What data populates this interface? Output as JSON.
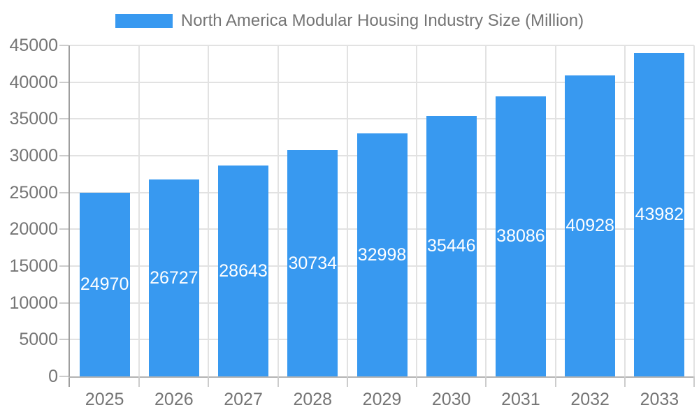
{
  "legend": {
    "label": "North America Modular Housing Industry Size (Million)"
  },
  "colors": {
    "bar": "#3899f0",
    "grid": "#e2e2e2",
    "axis_line": "#9e9e9e",
    "baseline": "#b3b3b3",
    "tick": "#cccccc",
    "axis_text": "#757575",
    "value_text": "#ffffff",
    "background": "#ffffff"
  },
  "chart_data": {
    "type": "bar",
    "title": "North America Modular Housing Industry Size (Million)",
    "categories": [
      "2025",
      "2026",
      "2027",
      "2028",
      "2029",
      "2030",
      "2031",
      "2032",
      "2033"
    ],
    "values": [
      24970,
      26727,
      28643,
      30734,
      32998,
      35446,
      38086,
      40928,
      43982
    ],
    "xlabel": "",
    "ylabel": "",
    "ylim": [
      0,
      45000
    ],
    "yticks": [
      0,
      5000,
      10000,
      15000,
      20000,
      25000,
      30000,
      35000,
      40000,
      45000
    ],
    "grid": true,
    "legend_position": "top-center",
    "value_labels": "inside-center-white"
  }
}
